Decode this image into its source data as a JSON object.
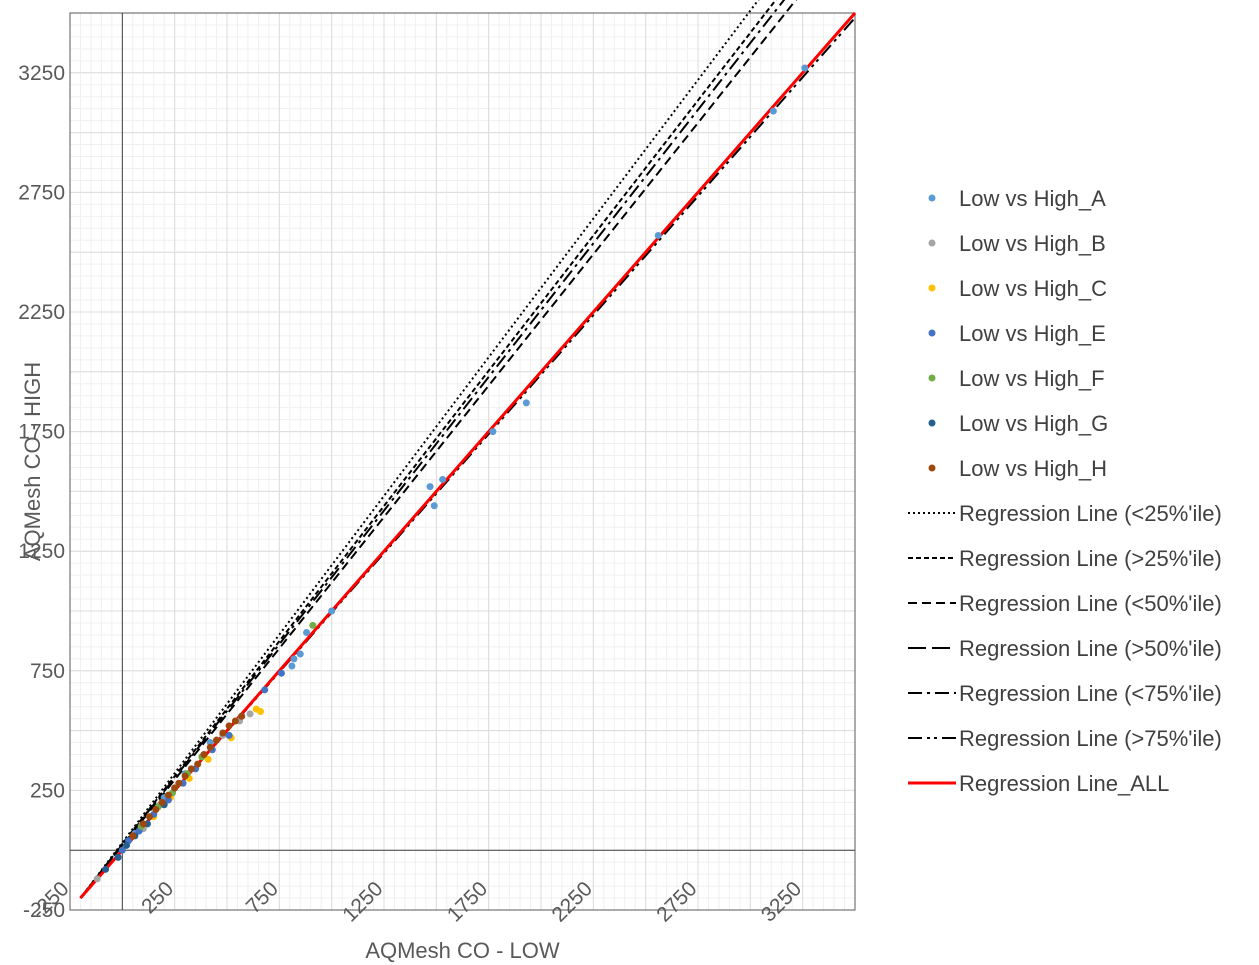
{
  "chart_data": {
    "type": "scatter",
    "xlabel": "AQMesh CO - LOW",
    "ylabel": "AQMesh CO - HIGH",
    "xlim": [
      -250,
      3500
    ],
    "ylim": [
      -250,
      3500
    ],
    "x_ticks": [
      -250,
      250,
      750,
      1250,
      1750,
      2250,
      2750,
      3250
    ],
    "y_ticks": [
      -250,
      250,
      750,
      1250,
      1750,
      2250,
      2750,
      3250
    ],
    "grid": true,
    "legend_position": "right",
    "series": [
      {
        "name": "Low vs High_A",
        "type": "scatter",
        "color": "#5b9bd5",
        "x": [
          810,
          820,
          850,
          880,
          1000,
          1470,
          1490,
          1530,
          1770,
          1930,
          2560,
          3110,
          3260,
          60,
          130,
          200,
          300,
          420
        ],
        "y": [
          770,
          800,
          820,
          910,
          1000,
          1520,
          1440,
          1550,
          1750,
          1870,
          2570,
          3090,
          3270,
          70,
          140,
          220,
          320,
          450
        ]
      },
      {
        "name": "Low vs High_B",
        "type": "scatter",
        "color": "#a5a5a5",
        "x": [
          -120,
          100,
          180,
          250,
          330,
          480,
          560,
          610
        ],
        "y": [
          -120,
          90,
          190,
          260,
          340,
          480,
          540,
          570
        ]
      },
      {
        "name": "Low vs High_C",
        "type": "scatter",
        "color": "#ffc000",
        "x": [
          150,
          230,
          320,
          410,
          520,
          640,
          660
        ],
        "y": [
          140,
          220,
          300,
          380,
          470,
          590,
          580
        ]
      },
      {
        "name": "Low vs High_E",
        "type": "scatter",
        "color": "#4472c4",
        "x": [
          0,
          30,
          80,
          150,
          220,
          290,
          350,
          430,
          510,
          570,
          680,
          760
        ],
        "y": [
          0,
          40,
          80,
          150,
          210,
          280,
          340,
          420,
          480,
          560,
          670,
          740
        ]
      },
      {
        "name": "Low vs High_F",
        "type": "scatter",
        "color": "#70ad47",
        "x": [
          90,
          170,
          240,
          310,
          380,
          450,
          910
        ],
        "y": [
          100,
          180,
          240,
          320,
          390,
          460,
          940
        ]
      },
      {
        "name": "Low vs High_G",
        "type": "scatter",
        "color": "#255e91",
        "x": [
          -80,
          -20,
          20,
          60,
          120,
          200
        ],
        "y": [
          -80,
          -30,
          20,
          60,
          110,
          190
        ]
      },
      {
        "name": "Low vs High_H",
        "type": "scatter",
        "color": "#9e480e",
        "x": [
          50,
          100,
          130,
          160,
          190,
          220,
          250,
          270,
          300,
          330,
          360,
          390,
          420,
          450,
          480,
          510,
          540,
          570
        ],
        "y": [
          60,
          110,
          140,
          170,
          200,
          230,
          260,
          280,
          310,
          340,
          360,
          400,
          430,
          460,
          490,
          520,
          540,
          560
        ]
      },
      {
        "name": "Regression Line (<25%'ile)",
        "type": "line",
        "color": "#000000",
        "dash": "2,3",
        "x": [
          -200,
          3250
        ],
        "y": [
          -200,
          3800
        ]
      },
      {
        "name": "Regression Line (>25%'ile)",
        "type": "line",
        "color": "#000000",
        "dash": "5,3",
        "x": [
          -200,
          3250
        ],
        "y": [
          -200,
          3700
        ]
      },
      {
        "name": "Regression Line (<50%'ile)",
        "type": "line",
        "color": "#000000",
        "dash": "9,5",
        "x": [
          -200,
          3250
        ],
        "y": [
          -200,
          3590
        ]
      },
      {
        "name": "Regression Line (>50%'ile)",
        "type": "line",
        "color": "#000000",
        "dash": "18,6",
        "x": [
          -200,
          3500
        ],
        "y": [
          -200,
          3500
        ]
      },
      {
        "name": "Regression Line (<75%'ile)",
        "type": "line",
        "color": "#000000",
        "dash": "14,5,3,5",
        "x": [
          -200,
          3300
        ],
        "y": [
          -200,
          3710
        ]
      },
      {
        "name": "Regression Line (>75%'ile)",
        "type": "line",
        "color": "#000000",
        "dash": "14,5,3,4,3,5",
        "x": [
          -200,
          3500
        ],
        "y": [
          -200,
          3480
        ]
      },
      {
        "name": "Regression Line_ALL",
        "type": "line",
        "color": "#ff0000",
        "dash": "",
        "x": [
          -200,
          3500
        ],
        "y": [
          -200,
          3500
        ]
      }
    ]
  }
}
